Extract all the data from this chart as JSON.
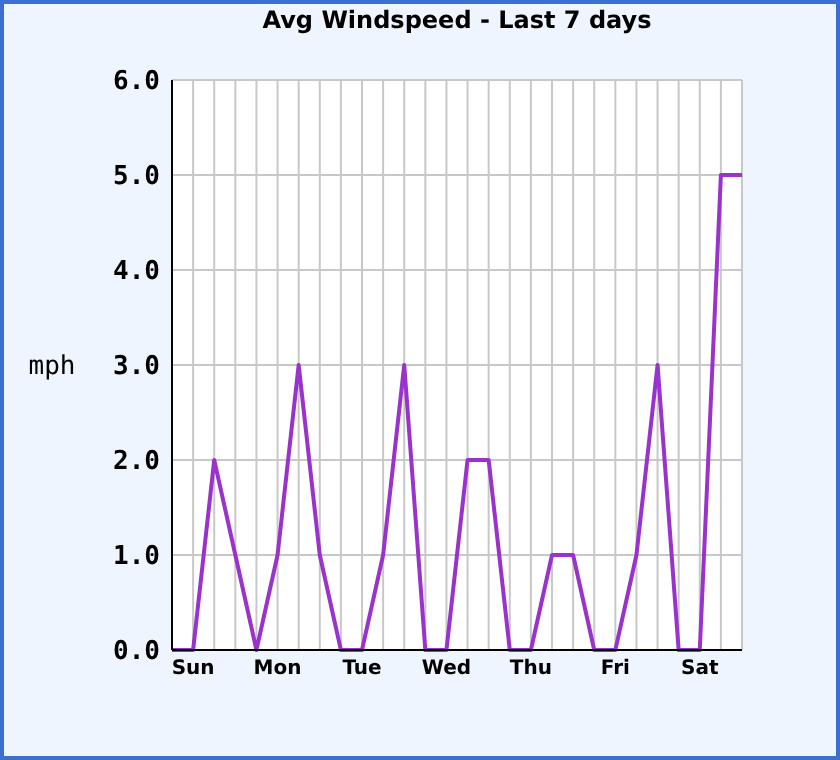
{
  "chart_data": {
    "type": "line",
    "title": "Avg Windspeed - Last 7 days",
    "ylabel": "mph",
    "categories": [
      null,
      "Sun",
      null,
      null,
      null,
      "Mon",
      null,
      null,
      null,
      "Tue",
      null,
      null,
      null,
      "Wed",
      null,
      null,
      null,
      "Thu",
      null,
      null,
      null,
      "Fri",
      null,
      null,
      null,
      "Sat",
      null,
      null
    ],
    "series": [
      {
        "color": "#9933cc",
        "values": [
          0,
          0,
          2,
          1,
          0,
          1,
          3,
          1,
          0,
          0,
          1,
          3,
          0,
          0,
          2,
          2,
          0,
          0,
          1,
          1,
          0,
          0,
          1,
          3,
          0,
          0,
          5,
          5
        ]
      }
    ],
    "ylim": [
      0,
      6
    ],
    "yticks": [
      {
        "value": 0,
        "label": "0.0"
      },
      {
        "value": 1,
        "label": "1.0"
      },
      {
        "value": 2,
        "label": "2.0"
      },
      {
        "value": 3,
        "label": "3.0"
      },
      {
        "value": 4,
        "label": "4.0"
      },
      {
        "value": 5,
        "label": "5.0"
      },
      {
        "value": 6,
        "label": "6.0"
      }
    ],
    "grid": true,
    "line_style": "solid",
    "marker": "none"
  }
}
